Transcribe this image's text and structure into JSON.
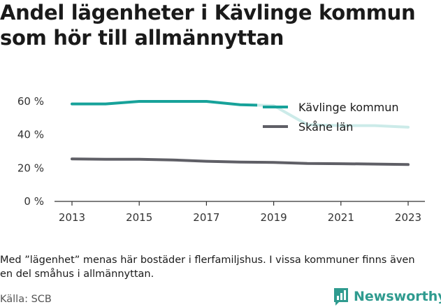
{
  "title": "Andel lägenheter i Kävlinge kommun som hör till allmännyttan",
  "note": "Med ”lägenhet” menas här bostäder i flerfamiljshus. I vissa kommuner finns även en del småhus i allmännyttan.",
  "source": "Källa: SCB",
  "brand": {
    "name": "Newsworthy",
    "icon": "bar-chart-logo-icon",
    "color": "#2f9b8f"
  },
  "chart_data": {
    "type": "line",
    "x": [
      2013,
      2014,
      2015,
      2016,
      2017,
      2018,
      2019,
      2020,
      2021,
      2022,
      2023
    ],
    "x_ticks": [
      "2013",
      "2015",
      "2017",
      "2019",
      "2021",
      "2023"
    ],
    "y_ticks": [
      "0 %",
      "20 %",
      "40 %",
      "60 %"
    ],
    "ylim": [
      0,
      60
    ],
    "grid": false,
    "legend_position": "top-right",
    "series": [
      {
        "name": "Kävlinge kommun",
        "color": "#17a29a",
        "values": [
          58.5,
          58.5,
          60,
          60,
          60,
          58,
          57.5,
          46,
          45.5,
          45.5,
          44.5
        ]
      },
      {
        "name": "Skåne län",
        "color": "#5f5f66",
        "values": [
          25.5,
          25.3,
          25.3,
          24.9,
          24.1,
          23.6,
          23.4,
          22.8,
          22.6,
          22.4,
          22.1
        ]
      }
    ]
  }
}
